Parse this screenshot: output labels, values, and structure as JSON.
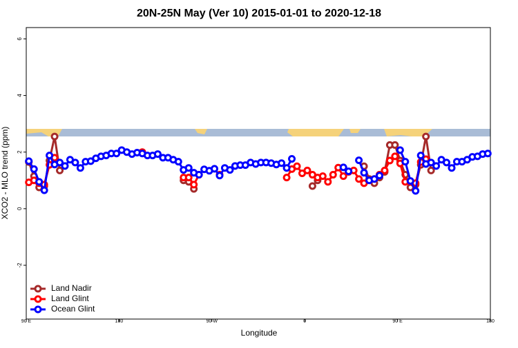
{
  "chart_data": {
    "type": "line",
    "title": "20N-25N May (Ver 10)   2015-01-01 to 2020-12-18",
    "x_label": "Longitude",
    "y_label": "XCO2 - MLO trend (ppm)",
    "xlim": [
      90,
      540
    ],
    "ylim": [
      -3.9,
      6.4
    ],
    "xticks": [
      {
        "value": 90,
        "label": "90 E"
      },
      180,
      {
        "value": 270,
        "label": "90 W"
      },
      {
        "value": 360,
        "label": "0"
      },
      {
        "value": 450,
        "label": "90 E"
      },
      {
        "value": 540,
        "label": "180"
      }
    ],
    "yticks": [
      -2,
      0,
      2,
      4,
      6
    ],
    "legend": "bottom-left",
    "x": [
      92.5,
      97.5,
      102.5,
      107.5,
      112.5,
      117.5,
      122.5,
      127.5,
      132.5,
      137.5,
      142.5,
      147.5,
      152.5,
      157.5,
      162.5,
      167.5,
      172.5,
      177.5,
      182.5,
      187.5,
      192.5,
      197.5,
      202.5,
      207.5,
      212.5,
      217.5,
      222.5,
      227.5,
      232.5,
      237.5,
      242.5,
      247.5,
      252.5,
      257.5,
      262.5,
      267.5,
      272.5,
      277.5,
      282.5,
      287.5,
      292.5,
      297.5,
      302.5,
      307.5,
      312.5,
      317.5,
      322.5,
      327.5,
      332.5,
      337.5,
      342.5,
      347.5,
      352.5,
      357.5,
      362.5,
      367.5,
      372.5,
      377.5,
      382.5,
      387.5,
      392.5,
      397.5,
      402.5,
      407.5,
      412.5,
      417.5,
      422.5,
      427.5,
      432.5,
      437.5,
      442.5,
      447.5,
      452.5,
      457.5,
      462.5,
      467.5,
      472.5,
      477.5,
      482.5,
      487.5,
      492.5,
      497.5,
      502.5,
      507.5,
      512.5,
      517.5,
      522.5,
      527.5,
      532.5,
      537.5
    ],
    "series": [
      {
        "name": "Land Nadir",
        "color": "#a52a2a",
        "values": [
          1.65,
          1.15,
          0.75,
          0.8,
          1.7,
          2.55,
          1.35,
          null,
          null,
          null,
          null,
          null,
          null,
          null,
          null,
          null,
          null,
          null,
          null,
          null,
          null,
          null,
          null,
          null,
          null,
          null,
          null,
          null,
          null,
          null,
          1.0,
          0.95,
          0.7,
          null,
          null,
          null,
          null,
          null,
          null,
          null,
          null,
          null,
          null,
          null,
          null,
          null,
          null,
          null,
          null,
          null,
          null,
          null,
          null,
          null,
          null,
          0.8,
          1.0,
          null,
          null,
          null,
          null,
          null,
          null,
          null,
          null,
          1.5,
          1.05,
          0.9,
          1.1,
          1.3,
          2.25,
          2.25,
          1.7,
          1.2,
          0.75,
          0.85,
          1.55,
          2.55,
          1.35,
          null,
          null,
          null,
          null,
          null,
          null,
          null,
          null,
          null,
          null,
          null
        ]
      },
      {
        "name": "Land Glint",
        "color": "#ff0000",
        "values": [
          0.93,
          1.0,
          0.9,
          0.85,
          1.55,
          1.8,
          null,
          null,
          null,
          null,
          null,
          null,
          null,
          null,
          null,
          null,
          null,
          null,
          null,
          null,
          null,
          null,
          2.0,
          null,
          null,
          null,
          null,
          null,
          null,
          null,
          1.1,
          1.1,
          0.85,
          1.2,
          null,
          null,
          null,
          1.2,
          null,
          null,
          null,
          null,
          null,
          null,
          null,
          null,
          null,
          null,
          null,
          null,
          1.1,
          1.4,
          1.5,
          1.25,
          1.35,
          1.2,
          1.1,
          1.15,
          0.95,
          1.2,
          1.45,
          1.15,
          1.3,
          1.35,
          1.05,
          0.9,
          null,
          1.05,
          1.2,
          1.35,
          1.7,
          1.85,
          1.6,
          0.95,
          0.95,
          0.9,
          1.65,
          1.75,
          null,
          null,
          null,
          null,
          null,
          null,
          null,
          null,
          null,
          null,
          null,
          null
        ]
      },
      {
        "name": "Ocean Glint",
        "color": "#0000ff",
        "values": [
          1.68,
          1.4,
          0.95,
          0.65,
          1.88,
          1.56,
          1.63,
          1.51,
          1.73,
          1.63,
          1.44,
          1.66,
          1.68,
          1.78,
          1.85,
          1.88,
          1.95,
          1.95,
          2.07,
          2.0,
          1.93,
          1.98,
          1.95,
          1.88,
          1.88,
          1.93,
          1.8,
          1.8,
          1.73,
          1.66,
          1.37,
          1.44,
          1.27,
          1.2,
          1.39,
          1.34,
          1.41,
          1.17,
          1.44,
          1.37,
          1.51,
          1.54,
          1.54,
          1.63,
          1.58,
          1.63,
          1.63,
          1.61,
          1.56,
          1.61,
          1.44,
          1.76,
          null,
          null,
          null,
          null,
          null,
          null,
          null,
          null,
          null,
          1.46,
          1.32,
          null,
          1.71,
          1.27,
          1.0,
          1.05,
          1.17,
          null,
          null,
          null,
          2.07,
          1.66,
          0.98,
          0.63,
          1.88,
          1.58,
          1.63,
          1.51,
          1.73,
          1.63,
          1.44,
          1.66,
          1.66,
          1.73,
          1.83,
          1.85,
          1.93,
          1.95
        ]
      }
    ]
  }
}
